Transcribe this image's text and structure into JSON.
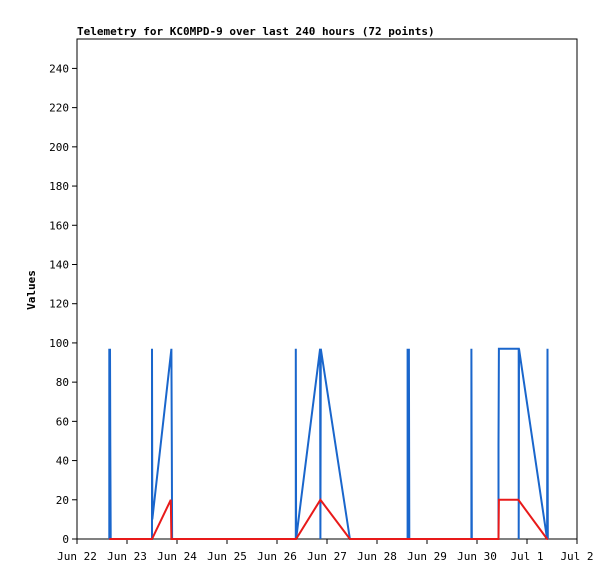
{
  "chart_data": {
    "type": "line",
    "title": "Telemetry for KC0MPD-9 over last 240 hours (72 points)",
    "xlabel": "",
    "ylabel": "Values",
    "ylim": [
      0,
      255
    ],
    "yticks": [
      0,
      20,
      40,
      60,
      80,
      100,
      120,
      140,
      160,
      180,
      200,
      220,
      240
    ],
    "xlim": [
      "2023-06-22T00:00",
      "2023-07-02T00:00"
    ],
    "xticks": [
      {
        "t": "2023-06-22T00:00",
        "label": "Jun 22"
      },
      {
        "t": "2023-06-23T00:00",
        "label": "Jun 23"
      },
      {
        "t": "2023-06-24T00:00",
        "label": "Jun 24"
      },
      {
        "t": "2023-06-25T00:00",
        "label": "Jun 25"
      },
      {
        "t": "2023-06-26T00:00",
        "label": "Jun 26"
      },
      {
        "t": "2023-06-27T00:00",
        "label": "Jun 27"
      },
      {
        "t": "2023-06-28T00:00",
        "label": "Jun 28"
      },
      {
        "t": "2023-06-29T00:00",
        "label": "Jun 29"
      },
      {
        "t": "2023-06-30T00:00",
        "label": "Jun 30"
      },
      {
        "t": "2023-07-01T00:00",
        "label": "Jul 1"
      },
      {
        "t": "2023-07-02T00:00",
        "label": "Jul 2"
      }
    ],
    "grid": false,
    "colors": {
      "series_a": "#1a66cc",
      "series_b": "#e81a1a",
      "axes": "#000000"
    },
    "series": [
      {
        "color": "#1a66cc",
        "points": [
          [
            "2023-06-22T15:30",
            0
          ],
          [
            "2023-06-22T15:30",
            97
          ],
          [
            "2023-06-22T15:40",
            0
          ],
          [
            "2023-06-22T15:50",
            97
          ],
          [
            "2023-06-22T16:00",
            48
          ],
          [
            "2023-06-22T16:10",
            0
          ],
          [
            "2023-06-23T12:00",
            0
          ],
          [
            "2023-06-23T12:00",
            97
          ],
          [
            "2023-06-23T12:10",
            10
          ],
          [
            "2023-06-23T21:20",
            97
          ],
          [
            "2023-06-23T21:30",
            48
          ],
          [
            "2023-06-23T21:40",
            0
          ],
          [
            "2023-06-26T09:00",
            0
          ],
          [
            "2023-06-26T09:00",
            97
          ],
          [
            "2023-06-26T09:10",
            0
          ],
          [
            "2023-06-26T20:40",
            97
          ],
          [
            "2023-06-26T20:50",
            0
          ],
          [
            "2023-06-26T21:00",
            97
          ],
          [
            "2023-06-27T11:00",
            0
          ],
          [
            "2023-06-28T14:40",
            0
          ],
          [
            "2023-06-28T14:40",
            97
          ],
          [
            "2023-06-28T14:50",
            0
          ],
          [
            "2023-06-28T15:00",
            97
          ],
          [
            "2023-06-28T15:10",
            0
          ],
          [
            "2023-06-28T15:20",
            97
          ],
          [
            "2023-06-28T15:30",
            0
          ],
          [
            "2023-06-29T21:20",
            0
          ],
          [
            "2023-06-29T21:20",
            97
          ],
          [
            "2023-06-29T21:30",
            0
          ],
          [
            "2023-06-30T10:20",
            0
          ],
          [
            "2023-06-30T10:20",
            48
          ],
          [
            "2023-06-30T10:30",
            97
          ],
          [
            "2023-06-30T20:00",
            97
          ],
          [
            "2023-06-30T20:00",
            0
          ],
          [
            "2023-06-30T20:10",
            97
          ],
          [
            "2023-07-01T09:40",
            0
          ],
          [
            "2023-07-01T09:50",
            97
          ],
          [
            "2023-07-01T10:00",
            0
          ]
        ]
      },
      {
        "color": "#e81a1a",
        "points": [
          [
            "2023-06-22T15:30",
            0
          ],
          [
            "2023-06-23T12:00",
            0
          ],
          [
            "2023-06-23T21:00",
            20
          ],
          [
            "2023-06-23T21:20",
            0
          ],
          [
            "2023-06-26T09:10",
            0
          ],
          [
            "2023-06-26T20:50",
            20
          ],
          [
            "2023-06-27T11:00",
            0
          ],
          [
            "2023-06-30T10:20",
            0
          ],
          [
            "2023-06-30T10:30",
            20
          ],
          [
            "2023-06-30T19:50",
            20
          ],
          [
            "2023-07-01T09:40",
            0
          ],
          [
            "2023-07-01T10:00",
            0
          ]
        ]
      }
    ]
  }
}
